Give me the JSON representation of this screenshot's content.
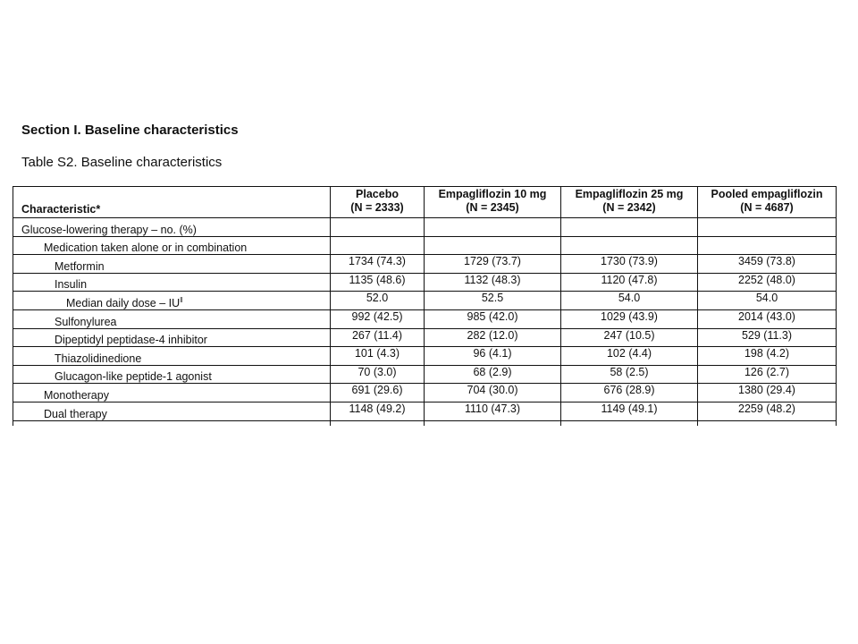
{
  "section_title": "Section I. Baseline characteristics",
  "table_caption": "Table S2. Baseline characteristics",
  "table": {
    "headers": [
      {
        "line1": "Characteristic*",
        "line2": ""
      },
      {
        "line1": "Placebo",
        "line2": "(N = 2333)"
      },
      {
        "line1": "Empagliflozin 10 mg",
        "line2": "(N = 2345)"
      },
      {
        "line1": "Empagliflozin 25 mg",
        "line2": "(N = 2342)"
      },
      {
        "line1": "Pooled empagliflozin",
        "line2": "(N = 4687)"
      }
    ],
    "rows": [
      {
        "label": "Glucose-lowering therapy – no. (%)",
        "sup": "",
        "indent": 0,
        "values": [
          "",
          "",
          "",
          ""
        ]
      },
      {
        "label": "Medication taken alone or in combination",
        "sup": "",
        "indent": 1,
        "values": [
          "",
          "",
          "",
          ""
        ]
      },
      {
        "label": "Metformin",
        "sup": "",
        "indent": 2,
        "values": [
          "1734 (74.3)",
          "1729 (73.7)",
          "1730 (73.9)",
          "3459 (73.8)"
        ]
      },
      {
        "label": "Insulin",
        "sup": "",
        "indent": 2,
        "values": [
          "1135 (48.6)",
          "1132 (48.3)",
          "1120 (47.8)",
          "2252 (48.0)"
        ]
      },
      {
        "label": "Median daily dose – IU",
        "sup": "ǁ",
        "indent": 3,
        "values": [
          "52.0",
          "52.5",
          "54.0",
          "54.0"
        ]
      },
      {
        "label": "Sulfonylurea",
        "sup": "",
        "indent": 2,
        "values": [
          "992 (42.5)",
          "985 (42.0)",
          "1029 (43.9)",
          "2014 (43.0)"
        ]
      },
      {
        "label": "Dipeptidyl peptidase-4 inhibitor",
        "sup": "",
        "indent": 2,
        "values": [
          "267 (11.4)",
          "282 (12.0)",
          "247 (10.5)",
          "529 (11.3)"
        ]
      },
      {
        "label": "Thiazolidinedione",
        "sup": "",
        "indent": 2,
        "values": [
          "101 (4.3)",
          "96 (4.1)",
          "102 (4.4)",
          "198 (4.2)"
        ]
      },
      {
        "label": "Glucagon-like peptide-1 agonist",
        "sup": "",
        "indent": 2,
        "values": [
          "70 (3.0)",
          "68 (2.9)",
          "58 (2.5)",
          "126 (2.7)"
        ]
      },
      {
        "label": "Monotherapy",
        "sup": "",
        "indent": 1,
        "values": [
          "691 (29.6)",
          "704 (30.0)",
          "676 (28.9)",
          "1380 (29.4)"
        ]
      },
      {
        "label": "Dual therapy",
        "sup": "",
        "indent": 1,
        "values": [
          "1148 (49.2)",
          "1110 (47.3)",
          "1149 (49.1)",
          "2259 (48.2)"
        ]
      }
    ]
  }
}
